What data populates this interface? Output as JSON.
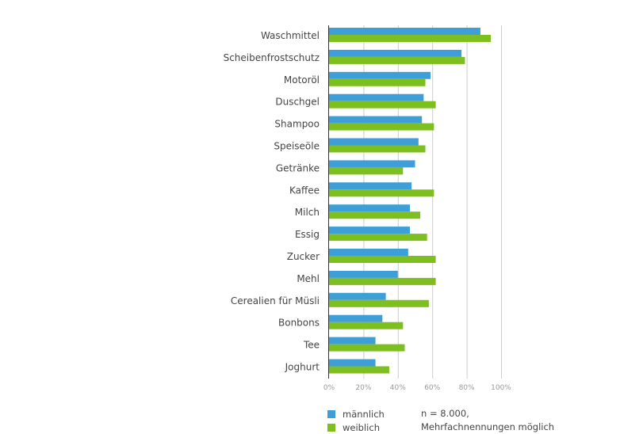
{
  "chart_data": {
    "type": "bar",
    "orientation": "horizontal",
    "categories": [
      "Waschmittel",
      "Scheibenfrostschutz",
      "Motoröl",
      "Duschgel",
      "Shampoo",
      "Speiseöle",
      "Getränke",
      "Kaffee",
      "Milch",
      "Essig",
      "Zucker",
      "Mehl",
      "Cerealien für Müsli",
      "Bonbons",
      "Tee",
      "Joghurt"
    ],
    "series": [
      {
        "name": "männlich",
        "color": "#3e9fd8",
        "values": [
          88,
          77,
          59,
          55,
          54,
          52,
          50,
          48,
          47,
          47,
          46,
          40,
          33,
          31,
          27,
          27
        ]
      },
      {
        "name": "weiblich",
        "color": "#7cbf1e",
        "values": [
          94,
          79,
          56,
          62,
          61,
          56,
          43,
          61,
          53,
          57,
          62,
          62,
          58,
          43,
          44,
          35
        ]
      }
    ],
    "xlim": [
      0,
      100
    ],
    "xticks": [
      "0%",
      "20%",
      "40%",
      "60%",
      "80%",
      "100%"
    ],
    "grid": true,
    "legend_position": "bottom"
  },
  "note_line1": "n = 8.000,",
  "note_line2": "Mehrfachnennungen möglich"
}
